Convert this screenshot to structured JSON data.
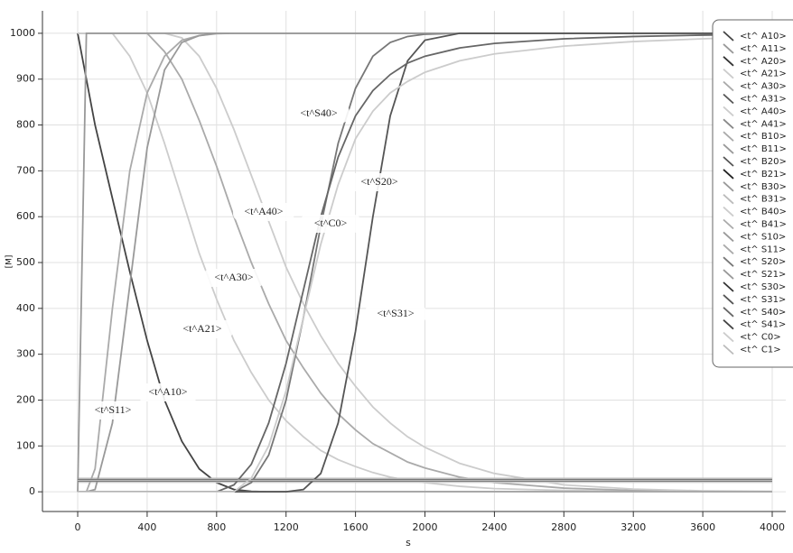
{
  "chart_data": {
    "type": "line",
    "x_label": "s",
    "y_label": "[M]",
    "x": [
      0,
      50,
      100,
      200,
      300,
      400,
      500,
      600,
      700,
      800,
      900,
      1000,
      1100,
      1200,
      1300,
      1400,
      1500,
      1600,
      1700,
      1800,
      1900,
      2000,
      2200,
      2400,
      2800,
      3200,
      3600,
      4000
    ],
    "xlim": [
      -203,
      4078
    ],
    "ylim": [
      -43,
      1049
    ],
    "xticks": [
      0,
      400,
      800,
      1200,
      1600,
      2000,
      2400,
      2800,
      3200,
      3600,
      4000
    ],
    "yticks": [
      0,
      100,
      200,
      300,
      400,
      500,
      600,
      700,
      800,
      900,
      1000
    ],
    "grid": true,
    "legend": "upper right",
    "annotations": [
      "<t^S40>",
      "<t^S20>",
      "<t^A40>",
      "<t^C0>",
      "<t^A30>",
      "<t^A21>",
      "<t^S31>",
      "<t^A10>",
      "<t^S11>"
    ],
    "series": [
      {
        "name": "<t^ A10>",
        "color": "#444444",
        "values": [
          1000,
          900,
          800,
          640,
          480,
          330,
          200,
          110,
          50,
          20,
          5,
          1,
          0,
          0,
          0,
          0,
          0,
          0,
          0,
          0,
          0,
          0,
          0,
          0,
          0,
          0,
          0,
          0
        ]
      },
      {
        "name": "<t^ A11>",
        "color": "#999999",
        "values": [
          28,
          28,
          28,
          28,
          28,
          28,
          28,
          28,
          28,
          28,
          28,
          28,
          28,
          28,
          28,
          28,
          28,
          28,
          28,
          28,
          28,
          28,
          28,
          28,
          28,
          28,
          28,
          28
        ]
      },
      {
        "name": "<t^ A20>",
        "color": "#333333",
        "values": [
          25,
          25,
          25,
          25,
          25,
          25,
          25,
          25,
          25,
          25,
          25,
          25,
          25,
          25,
          25,
          25,
          25,
          25,
          25,
          25,
          25,
          25,
          25,
          25,
          25,
          25,
          25,
          25
        ]
      },
      {
        "name": "<t^ A21>",
        "color": "#cccccc",
        "values": [
          1000,
          1000,
          1000,
          1000,
          950,
          870,
          760,
          640,
          520,
          420,
          330,
          260,
          200,
          155,
          120,
          90,
          70,
          55,
          42,
          32,
          25,
          20,
          12,
          7,
          3,
          1,
          0,
          0
        ]
      },
      {
        "name": "<t^ A30>",
        "color": "#aaaaaa",
        "values": [
          1000,
          1000,
          1000,
          1000,
          1000,
          1000,
          960,
          900,
          810,
          710,
          600,
          500,
          410,
          330,
          270,
          215,
          170,
          135,
          105,
          85,
          65,
          52,
          32,
          20,
          8,
          3,
          1,
          0
        ]
      },
      {
        "name": "<t^ A31>",
        "color": "#555555",
        "values": [
          22,
          22,
          22,
          22,
          22,
          22,
          22,
          22,
          22,
          22,
          22,
          22,
          22,
          22,
          22,
          22,
          22,
          22,
          22,
          22,
          22,
          22,
          22,
          22,
          22,
          22,
          22,
          22
        ]
      },
      {
        "name": "<t^ A40>",
        "color": "#cccccc",
        "values": [
          1000,
          1000,
          1000,
          1000,
          1000,
          1000,
          1000,
          990,
          950,
          880,
          790,
          690,
          590,
          490,
          410,
          340,
          280,
          230,
          185,
          150,
          120,
          97,
          62,
          40,
          15,
          6,
          2,
          1
        ]
      },
      {
        "name": "<t^ A41>",
        "color": "#888888",
        "values": [
          27,
          27,
          27,
          27,
          27,
          27,
          27,
          27,
          27,
          27,
          27,
          27,
          27,
          27,
          27,
          27,
          27,
          27,
          27,
          27,
          27,
          27,
          27,
          27,
          27,
          27,
          27,
          27
        ]
      },
      {
        "name": "<t^ B10>",
        "color": "#aaaaaa",
        "values": [
          0,
          0,
          0,
          0,
          0,
          0,
          0,
          0,
          0,
          0,
          0,
          0,
          0,
          0,
          0,
          0,
          0,
          0,
          0,
          0,
          0,
          0,
          0,
          0,
          0,
          0,
          0,
          0
        ]
      },
      {
        "name": "<t^ B11>",
        "color": "#999999",
        "values": [
          24,
          24,
          24,
          24,
          24,
          24,
          24,
          24,
          24,
          24,
          24,
          24,
          24,
          24,
          24,
          24,
          24,
          24,
          24,
          24,
          24,
          24,
          24,
          24,
          24,
          24,
          24,
          24
        ]
      },
      {
        "name": "<t^ B20>",
        "color": "#555555",
        "values": [
          26,
          26,
          26,
          26,
          26,
          26,
          26,
          26,
          26,
          26,
          26,
          26,
          26,
          26,
          26,
          26,
          26,
          26,
          26,
          26,
          26,
          26,
          26,
          26,
          26,
          26,
          26,
          26
        ]
      },
      {
        "name": "<t^ B21>",
        "color": "#222222",
        "values": [
          23,
          23,
          23,
          23,
          23,
          23,
          23,
          23,
          23,
          23,
          23,
          23,
          23,
          23,
          23,
          23,
          23,
          23,
          23,
          23,
          23,
          23,
          23,
          23,
          23,
          23,
          23,
          23
        ]
      },
      {
        "name": "<t^ B30>",
        "color": "#999999",
        "values": [
          0,
          0,
          0,
          0,
          0,
          0,
          0,
          0,
          0,
          0,
          0,
          0,
          0,
          0,
          0,
          0,
          0,
          0,
          0,
          0,
          0,
          0,
          0,
          0,
          0,
          0,
          0,
          0
        ]
      },
      {
        "name": "<t^ B31>",
        "color": "#bbbbbb",
        "values": [
          29,
          29,
          29,
          29,
          29,
          29,
          29,
          29,
          29,
          29,
          29,
          29,
          29,
          29,
          29,
          29,
          29,
          29,
          29,
          29,
          29,
          29,
          29,
          29,
          29,
          29,
          29,
          29
        ]
      },
      {
        "name": "<t^ B40>",
        "color": "#cccccc",
        "values": [
          21,
          21,
          21,
          21,
          21,
          21,
          21,
          21,
          21,
          21,
          21,
          21,
          21,
          21,
          21,
          21,
          21,
          21,
          21,
          21,
          21,
          21,
          21,
          21,
          21,
          21,
          21,
          21
        ]
      },
      {
        "name": "<t^ B41>",
        "color": "#aaaaaa",
        "values": [
          0,
          0,
          0,
          0,
          0,
          0,
          0,
          0,
          0,
          0,
          0,
          0,
          0,
          0,
          0,
          0,
          0,
          0,
          0,
          0,
          0,
          0,
          0,
          0,
          0,
          0,
          0,
          0
        ]
      },
      {
        "name": "<t^ S10>",
        "color": "#999999",
        "values": [
          0,
          1000,
          1000,
          1000,
          1000,
          1000,
          1000,
          1000,
          1000,
          1000,
          1000,
          1000,
          1000,
          1000,
          1000,
          1000,
          1000,
          1000,
          1000,
          1000,
          1000,
          1000,
          1000,
          1000,
          1000,
          1000,
          1000,
          1000
        ]
      },
      {
        "name": "<t^ S11>",
        "color": "#aaaaaa",
        "values": [
          0,
          0,
          50,
          400,
          700,
          870,
          950,
          985,
          995,
          999,
          1000,
          1000,
          1000,
          1000,
          1000,
          1000,
          1000,
          1000,
          1000,
          1000,
          1000,
          1000,
          1000,
          1000,
          1000,
          1000,
          1000,
          1000
        ]
      },
      {
        "name": "<t^ S20>",
        "color": "#777777",
        "values": [
          0,
          0,
          0,
          0,
          0,
          0,
          0,
          0,
          0,
          0,
          0,
          20,
          80,
          200,
          380,
          580,
          760,
          880,
          950,
          980,
          993,
          998,
          1000,
          1000,
          1000,
          1000,
          1000,
          1000
        ]
      },
      {
        "name": "<t^ S21>",
        "color": "#999999",
        "values": [
          0,
          0,
          5,
          150,
          450,
          750,
          920,
          980,
          995,
          1000,
          1000,
          1000,
          1000,
          1000,
          1000,
          1000,
          1000,
          1000,
          1000,
          1000,
          1000,
          1000,
          1000,
          1000,
          1000,
          1000,
          1000,
          1000
        ]
      },
      {
        "name": "<t^ S30>",
        "color": "#333333",
        "values": [
          26,
          26,
          26,
          26,
          26,
          26,
          26,
          26,
          26,
          26,
          26,
          26,
          26,
          26,
          26,
          26,
          26,
          26,
          26,
          26,
          26,
          26,
          26,
          26,
          26,
          26,
          26,
          26
        ]
      },
      {
        "name": "<t^ S31>",
        "color": "#555555",
        "values": [
          0,
          0,
          0,
          0,
          0,
          0,
          0,
          0,
          0,
          0,
          0,
          0,
          0,
          0,
          5,
          40,
          150,
          350,
          600,
          820,
          940,
          985,
          1000,
          1000,
          1000,
          1000,
          1000,
          1000
        ]
      },
      {
        "name": "<t^ S40>",
        "color": "#666666",
        "values": [
          0,
          0,
          0,
          0,
          0,
          0,
          0,
          0,
          0,
          0,
          15,
          60,
          150,
          280,
          440,
          600,
          730,
          820,
          875,
          910,
          935,
          950,
          968,
          978,
          988,
          993,
          996,
          998
        ]
      },
      {
        "name": "<t^ S41>",
        "color": "#444444",
        "values": [
          24,
          24,
          24,
          24,
          24,
          24,
          24,
          24,
          24,
          24,
          24,
          24,
          24,
          24,
          24,
          24,
          24,
          24,
          24,
          24,
          24,
          24,
          24,
          24,
          24,
          24,
          24,
          24
        ]
      },
      {
        "name": "<t^ C0>",
        "color": "#cccccc",
        "values": [
          0,
          0,
          0,
          0,
          0,
          0,
          0,
          0,
          0,
          0,
          0,
          30,
          100,
          220,
          380,
          540,
          670,
          770,
          830,
          870,
          895,
          915,
          940,
          955,
          972,
          982,
          988,
          993
        ]
      },
      {
        "name": "<t^ C1>",
        "color": "#bbbbbb",
        "values": [
          25,
          25,
          25,
          25,
          25,
          25,
          25,
          25,
          25,
          25,
          25,
          25,
          25,
          25,
          25,
          25,
          25,
          25,
          25,
          25,
          25,
          25,
          25,
          25,
          25,
          25,
          25,
          25
        ]
      }
    ]
  }
}
